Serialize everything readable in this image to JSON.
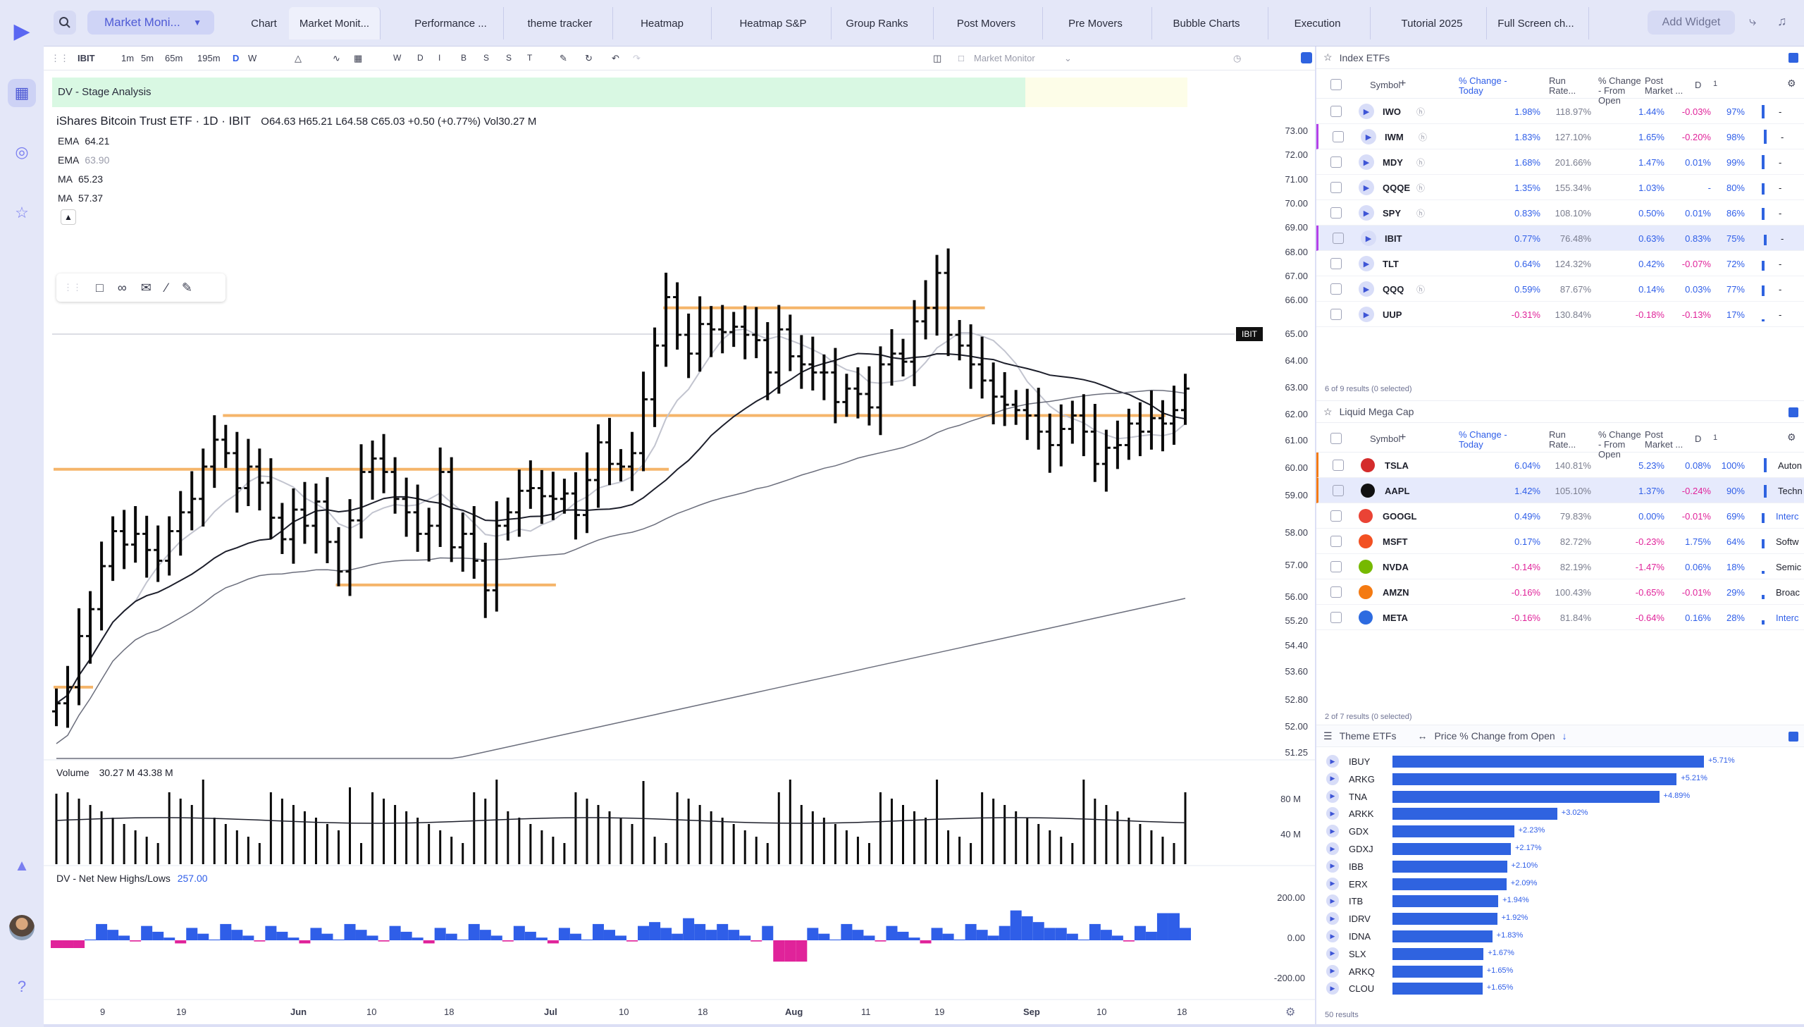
{
  "topbar": {
    "layout": "Market Moni...",
    "tabs": [
      "Chart",
      "Market Monit...",
      "Performance ...",
      "theme tracker",
      "Heatmap",
      "Heatmap S&P",
      "Group Ranks",
      "Post Movers",
      "Pre Movers",
      "Bubble Charts",
      "Execution",
      "Tutorial 2025",
      "Full Screen ch..."
    ],
    "active_tab": "Market Monit...",
    "add_widget": "Add Widget"
  },
  "toolbar": {
    "symbol": "IBIT",
    "intervals": [
      "1m",
      "5m",
      "65m",
      "195m",
      "D",
      "W"
    ],
    "active_interval": "D",
    "ranges": [
      "W",
      "D",
      "I",
      "B",
      "S",
      "S",
      "T"
    ],
    "layout_name": "Market Monitor"
  },
  "chart": {
    "indicator_label": "DV - Stage Analysis",
    "title": "iShares Bitcoin Trust ETF · 1D · IBIT",
    "ohlc": "O64.63  H65.21  L64.58  C65.03  +0.50 (+0.77%)  Vol30.27 M",
    "legend": [
      {
        "name": "EMA",
        "value": "64.21",
        "color": "#1d1f2b"
      },
      {
        "name": "EMA",
        "value": "63.90",
        "color": "#9a9cab"
      },
      {
        "name": "MA",
        "value": "65.23",
        "color": "#1d1f2b"
      },
      {
        "name": "MA",
        "value": "57.37",
        "color": "#1d1f2b"
      }
    ],
    "last_price_tag": "IBIT",
    "last_price_label": "65.00",
    "price_labels": [
      "73.00",
      "72.00",
      "71.00",
      "70.00",
      "69.00",
      "68.00",
      "67.00",
      "66.00",
      "65.00",
      "64.00",
      "63.00",
      "62.00",
      "61.00",
      "60.00",
      "59.00",
      "58.00",
      "57.00",
      "56.00",
      "55.20",
      "54.40",
      "53.60",
      "52.80",
      "52.00",
      "51.25"
    ],
    "volume_label": "Volume",
    "volume_values": "30.27 M  43.38 M",
    "volume_axis": [
      "80 M",
      "40 M"
    ],
    "nnh_label": "DV - Net New Highs/Lows",
    "nnh_value": "257.00",
    "nnh_axis": [
      "200.00",
      "0.00",
      "-200.00"
    ],
    "time_labels": [
      "9",
      "19",
      "Jun",
      "10",
      "18",
      "Jul",
      "10",
      "18",
      "Aug",
      "11",
      "19",
      "Sep",
      "10",
      "18"
    ]
  },
  "chart_data": {
    "type": "ohlc",
    "symbol": "IBIT",
    "x_range": [
      "May",
      "Sep"
    ],
    "ylim": [
      51.25,
      73.0
    ],
    "close_series": [
      53.3,
      53.9,
      55.8,
      56.8,
      58.4,
      59.7,
      59.2,
      59.6,
      59.0,
      58.6,
      59.7,
      60.4,
      60.9,
      62.1,
      63.1,
      62.6,
      61.3,
      62.1,
      61.5,
      60.2,
      59.4,
      60.5,
      59.9,
      60.8,
      59.3,
      58.2,
      60.1,
      61.9,
      62.4,
      61.9,
      60.9,
      60.4,
      59.6,
      59.9,
      61.9,
      59.1,
      59.6,
      58.6,
      57.5,
      59.9,
      60.4,
      61.2,
      61.3,
      61.0,
      60.9,
      61.1,
      60.3,
      61.6,
      63.0,
      62.2,
      62.1,
      62.6,
      64.6,
      66.6,
      68.4,
      67.0,
      66.3,
      67.4,
      67.2,
      67.1,
      67.3,
      67.0,
      66.8,
      65.6,
      67.2,
      66.2,
      65.9,
      65.6,
      65.6,
      64.5,
      65.0,
      64.8,
      64.3,
      65.9,
      66.3,
      66.0,
      67.5,
      68.0,
      69.3,
      67.0,
      66.6,
      65.9,
      65.3,
      64.7,
      64.4,
      64.2,
      64.0,
      63.4,
      62.9,
      63.5,
      64.0,
      63.4,
      62.2,
      62.8,
      62.9,
      63.7,
      63.4,
      63.9,
      63.7,
      64.2,
      65.0
    ],
    "levels": [
      {
        "price": 68.0,
        "from": 54,
        "to": 82
      },
      {
        "price": 64.0,
        "from": 15,
        "to": 98
      },
      {
        "price": 62.0,
        "from": 0,
        "to": 54
      },
      {
        "price": 57.7,
        "from": 25,
        "to": 44
      },
      {
        "price": 53.9,
        "from": 0,
        "to": 3
      }
    ]
  },
  "index_etfs": {
    "title": "Index ETFs",
    "columns": [
      "Symbol",
      "% Change - Today",
      "Run Rate...",
      "% Change - From Open",
      "Post Market ...",
      "D"
    ],
    "rows": [
      {
        "symbol": "IWO",
        "change": "1.98%",
        "run": "118.97%",
        "open": "1.44%",
        "post": "-0.03%",
        "pct": "97%",
        "flag": "H",
        "sel": false
      },
      {
        "symbol": "IWM",
        "change": "1.83%",
        "run": "127.10%",
        "open": "1.65%",
        "post": "-0.20%",
        "pct": "98%",
        "flag": "H",
        "sel": false
      },
      {
        "symbol": "MDY",
        "change": "1.68%",
        "run": "201.66%",
        "open": "1.47%",
        "post": "0.01%",
        "pct": "99%",
        "flag": "H",
        "sel": false
      },
      {
        "symbol": "QQQE",
        "change": "1.35%",
        "run": "155.34%",
        "open": "1.03%",
        "post": "-",
        "pct": "80%",
        "flag": "H",
        "sel": false
      },
      {
        "symbol": "SPY",
        "change": "0.83%",
        "run": "108.10%",
        "open": "0.50%",
        "post": "0.01%",
        "pct": "86%",
        "flag": "H",
        "sel": false
      },
      {
        "symbol": "IBIT",
        "change": "0.77%",
        "run": "76.48%",
        "open": "0.63%",
        "post": "0.83%",
        "pct": "75%",
        "flag": "",
        "sel": true
      },
      {
        "symbol": "TLT",
        "change": "0.64%",
        "run": "124.32%",
        "open": "0.42%",
        "post": "-0.07%",
        "pct": "72%",
        "flag": "",
        "sel": false
      },
      {
        "symbol": "QQQ",
        "change": "0.59%",
        "run": "87.67%",
        "open": "0.14%",
        "post": "0.03%",
        "pct": "77%",
        "flag": "H",
        "sel": false
      },
      {
        "symbol": "UUP",
        "change": "-0.31%",
        "run": "130.84%",
        "open": "-0.18%",
        "post": "-0.13%",
        "pct": "17%",
        "flag": "",
        "sel": false
      }
    ],
    "footer": "6 of 9 results (0 selected)"
  },
  "mega_cap": {
    "title": "Liquid Mega Cap",
    "rows": [
      {
        "symbol": "TSLA",
        "change": "6.04%",
        "run": "140.81%",
        "open": "5.23%",
        "post": "0.08%",
        "pct": "100%",
        "sector": "Auton",
        "sel": false,
        "logo": "#d42c2c"
      },
      {
        "symbol": "AAPL",
        "change": "1.42%",
        "run": "105.10%",
        "open": "1.37%",
        "post": "-0.24%",
        "pct": "90%",
        "sector": "Techn",
        "sel": true,
        "logo": "#111111"
      },
      {
        "symbol": "GOOGL",
        "change": "0.49%",
        "run": "79.83%",
        "open": "0.00%",
        "post": "-0.01%",
        "pct": "69%",
        "sector": "Interc",
        "sel": false,
        "logo": "#ea4335"
      },
      {
        "symbol": "MSFT",
        "change": "0.17%",
        "run": "82.72%",
        "open": "-0.23%",
        "post": "1.75%",
        "pct": "64%",
        "sector": "Softw",
        "sel": false,
        "logo": "#f25022"
      },
      {
        "symbol": "NVDA",
        "change": "-0.14%",
        "run": "82.19%",
        "open": "-1.47%",
        "post": "0.06%",
        "pct": "18%",
        "sector": "Semic",
        "sel": false,
        "logo": "#76b900"
      },
      {
        "symbol": "AMZN",
        "change": "-0.16%",
        "run": "100.43%",
        "open": "-0.65%",
        "post": "-0.01%",
        "pct": "29%",
        "sector": "Broac",
        "sel": false,
        "logo": "#f47a12"
      },
      {
        "symbol": "META",
        "change": "-0.16%",
        "run": "81.84%",
        "open": "-0.64%",
        "post": "0.16%",
        "pct": "28%",
        "sector": "Interc",
        "sel": false,
        "logo": "#2d6be0"
      }
    ],
    "footer": "2 of 7 results (0 selected)"
  },
  "theme_etfs": {
    "title": "Theme ETFs",
    "metric": "Price % Change from Open",
    "rows": [
      {
        "symbol": "IBUY",
        "value": 5.71,
        "label": "+5.71%"
      },
      {
        "symbol": "ARKG",
        "value": 5.21,
        "label": "+5.21%"
      },
      {
        "symbol": "TNA",
        "value": 4.89,
        "label": "+4.89%"
      },
      {
        "symbol": "ARKK",
        "value": 3.02,
        "label": "+3.02%"
      },
      {
        "symbol": "GDX",
        "value": 2.23,
        "label": "+2.23%"
      },
      {
        "symbol": "GDXJ",
        "value": 2.17,
        "label": "+2.17%"
      },
      {
        "symbol": "IBB",
        "value": 2.1,
        "label": "+2.10%"
      },
      {
        "symbol": "ERX",
        "value": 2.09,
        "label": "+2.09%"
      },
      {
        "symbol": "ITB",
        "value": 1.94,
        "label": "+1.94%"
      },
      {
        "symbol": "IDRV",
        "value": 1.92,
        "label": "+1.92%"
      },
      {
        "symbol": "IDNA",
        "value": 1.83,
        "label": "+1.83%"
      },
      {
        "symbol": "SLX",
        "value": 1.67,
        "label": "+1.67%"
      },
      {
        "symbol": "ARKQ",
        "value": 1.65,
        "label": "+1.65%"
      },
      {
        "symbol": "CLOU",
        "value": 1.65,
        "label": "+1.65%"
      }
    ],
    "footer": "50 results"
  },
  "colors": {
    "accent": "#4f5bd5",
    "positive": "#2f5ee8",
    "negative": "#e0239a",
    "level": "#f5b56a",
    "bar": "#2f63e0"
  }
}
